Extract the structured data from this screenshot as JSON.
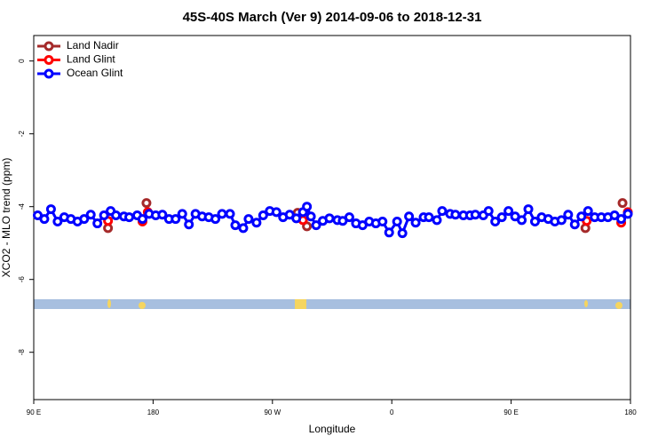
{
  "chart_data": {
    "type": "line",
    "title": "45S-40S March (Ver 9)   2014-09-06 to 2018-12-31",
    "xlabel": "Longitude",
    "ylabel": "XCO2 - MLO trend (ppm)",
    "xlim": [
      90,
      540
    ],
    "ylim": [
      -9.3,
      0.7
    ],
    "xticks": [
      {
        "value": 90,
        "label": "90 E"
      },
      180,
      {
        "value": 270,
        "label": "90 W"
      },
      {
        "value": 360,
        "label": "0"
      },
      {
        "value": 450,
        "label": "90 E"
      },
      {
        "value": 540,
        "label": "180"
      }
    ],
    "yticks": [
      0,
      -2,
      -4,
      -6,
      -8
    ],
    "legend": "top-left",
    "series": [
      {
        "name": "Land Nadir",
        "color": "#a52a2a",
        "x": [
          146,
          160,
          175,
          230,
          289,
          296,
          400,
          506,
          520,
          534
        ],
        "values": [
          -4.59,
          null,
          -3.9,
          null,
          -4.17,
          -4.54,
          null,
          -4.59,
          null,
          -3.9
        ]
      },
      {
        "name": "Land Glint",
        "color": "#ff0000",
        "x": [
          146,
          160,
          172,
          176,
          230,
          293,
          400,
          507,
          520,
          533,
          538
        ],
        "values": [
          -4.39,
          null,
          -4.41,
          -4.15,
          null,
          -4.37,
          null,
          -4.39,
          null,
          -4.44,
          -4.15
        ]
      },
      {
        "name": "Ocean Glint",
        "color": "#0000ff",
        "x": [
          93,
          98,
          103,
          108,
          113,
          118,
          123,
          128,
          133,
          138,
          143,
          148,
          152,
          158,
          162,
          168,
          172,
          177,
          182,
          187,
          192,
          197,
          202,
          207,
          212,
          217,
          222,
          227,
          232,
          238,
          242,
          248,
          252,
          258,
          263,
          268,
          273,
          278,
          283,
          288,
          293,
          296,
          299,
          303,
          308,
          313,
          319,
          323,
          328,
          333,
          338,
          343,
          348,
          353,
          358,
          364,
          368,
          373,
          378,
          384,
          388,
          394,
          398,
          404,
          408,
          414,
          419,
          423,
          429,
          433,
          438,
          443,
          448,
          453,
          458,
          463,
          468,
          473,
          478,
          483,
          488,
          493,
          498,
          503,
          508,
          513,
          518,
          523,
          528,
          533,
          538
        ],
        "values": [
          -4.24,
          -4.34,
          -4.07,
          -4.41,
          -4.29,
          -4.34,
          -4.41,
          -4.34,
          -4.22,
          -4.46,
          -4.24,
          -4.12,
          -4.24,
          -4.27,
          -4.29,
          -4.24,
          -4.34,
          -4.2,
          -4.24,
          -4.22,
          -4.34,
          -4.34,
          -4.2,
          -4.49,
          -4.2,
          -4.27,
          -4.29,
          -4.34,
          -4.2,
          -4.2,
          -4.51,
          -4.59,
          -4.34,
          -4.44,
          -4.24,
          -4.12,
          -4.15,
          -4.29,
          -4.22,
          -4.32,
          -4.15,
          -4.0,
          -4.27,
          -4.51,
          -4.39,
          -4.32,
          -4.37,
          -4.39,
          -4.29,
          -4.46,
          -4.51,
          -4.41,
          -4.46,
          -4.41,
          -4.71,
          -4.41,
          -4.73,
          -4.27,
          -4.44,
          -4.29,
          -4.29,
          -4.37,
          -4.12,
          -4.2,
          -4.22,
          -4.24,
          -4.24,
          -4.22,
          -4.24,
          -4.12,
          -4.41,
          -4.29,
          -4.12,
          -4.27,
          -4.37,
          -4.07,
          -4.41,
          -4.29,
          -4.34,
          -4.41,
          -4.37,
          -4.22,
          -4.49,
          -4.27,
          -4.12,
          -4.29,
          -4.29,
          -4.29,
          -4.24,
          -4.34,
          -4.2
        ]
      }
    ]
  }
}
